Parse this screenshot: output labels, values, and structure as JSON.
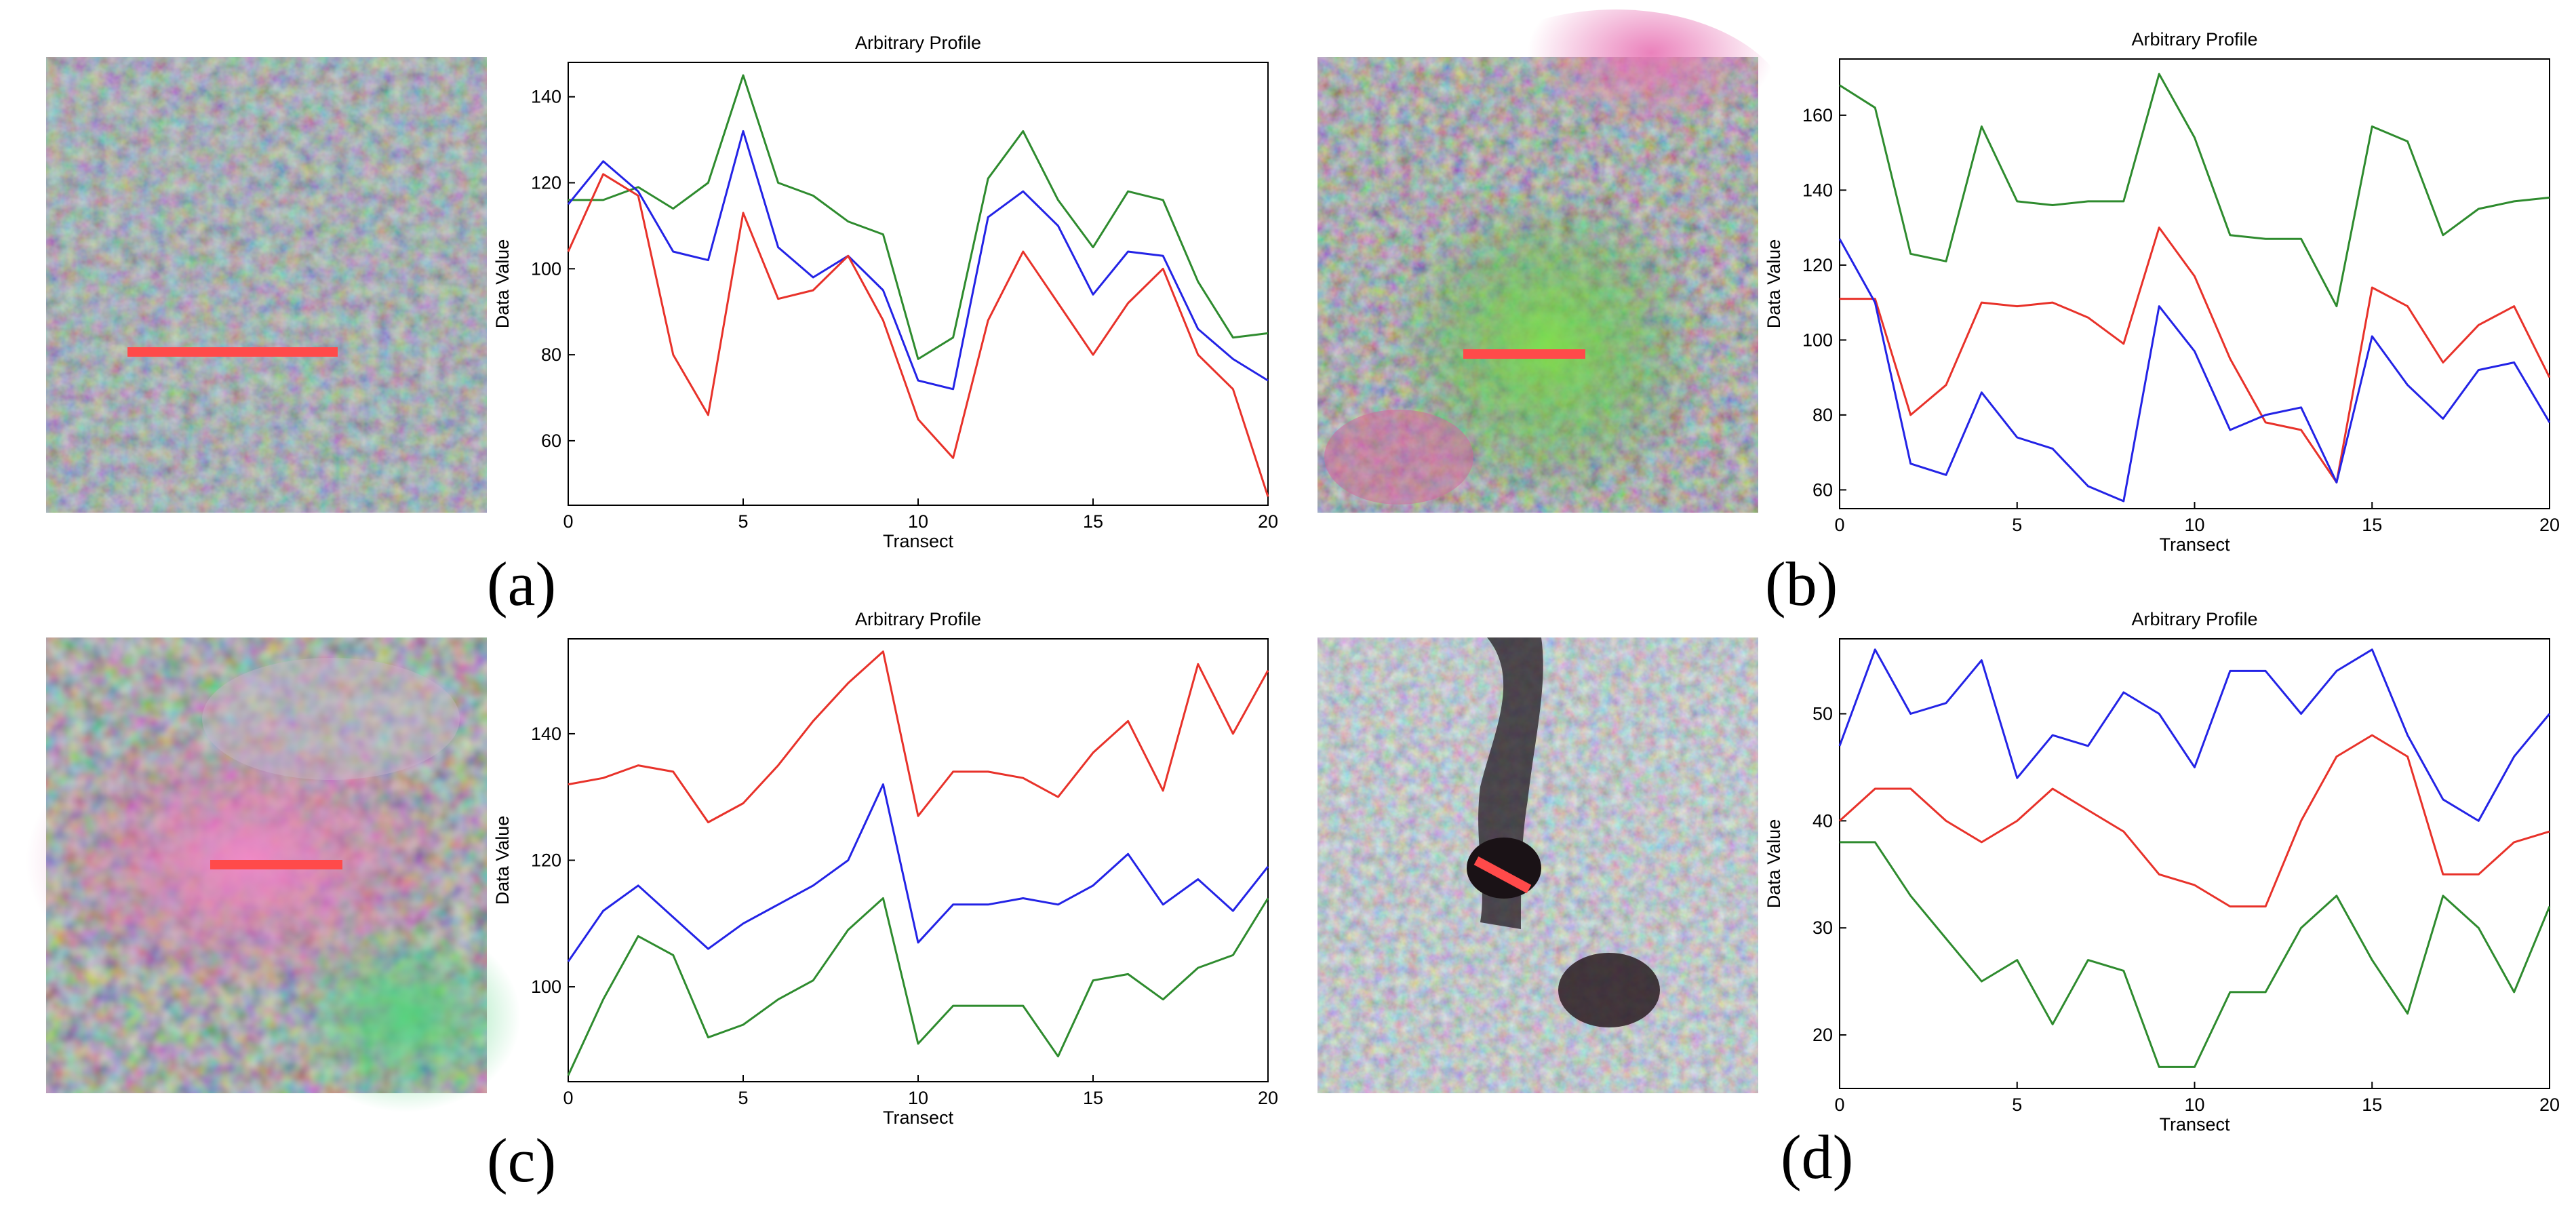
{
  "colors": {
    "red_series": "#e8322a",
    "blue_series": "#2323e6",
    "green_series": "#2e8b2e",
    "transect_line": "#ff4a4a"
  },
  "panels": [
    {
      "label": "(a)"
    },
    {
      "label": "(b)"
    },
    {
      "label": "(c)"
    },
    {
      "label": "(d)"
    }
  ],
  "chart_data": [
    {
      "type": "line",
      "title": "Arbitrary Profile",
      "xlabel": "Transect",
      "ylabel": "Data Value",
      "xlim": [
        0,
        20
      ],
      "ylim": [
        45,
        148
      ],
      "xticks": [
        0,
        5,
        10,
        15,
        20
      ],
      "yticks": [
        60,
        80,
        100,
        120,
        140
      ],
      "x": [
        0,
        1,
        2,
        3,
        4,
        5,
        6,
        7,
        8,
        9,
        10,
        11,
        12,
        13,
        14,
        15,
        16,
        17,
        18,
        19,
        20
      ],
      "series": [
        {
          "name": "green",
          "color": "#2e8b2e",
          "values": [
            116,
            116,
            119,
            114,
            120,
            145,
            120,
            117,
            111,
            108,
            79,
            84,
            121,
            132,
            116,
            105,
            118,
            116,
            97,
            84,
            85
          ]
        },
        {
          "name": "blue",
          "color": "#2323e6",
          "values": [
            115,
            125,
            118,
            104,
            102,
            132,
            105,
            98,
            103,
            95,
            74,
            72,
            112,
            118,
            110,
            94,
            104,
            103,
            86,
            79,
            74
          ]
        },
        {
          "name": "red",
          "color": "#e8322a",
          "values": [
            104,
            122,
            117,
            80,
            66,
            113,
            93,
            95,
            103,
            88,
            65,
            56,
            88,
            104,
            92,
            80,
            92,
            100,
            80,
            72,
            47
          ]
        }
      ]
    },
    {
      "type": "line",
      "title": "Arbitrary Profile",
      "xlabel": "Transect",
      "ylabel": "Data Value",
      "xlim": [
        0,
        20
      ],
      "ylim": [
        55,
        175
      ],
      "xticks": [
        0,
        5,
        10,
        15,
        20
      ],
      "yticks": [
        60,
        80,
        100,
        120,
        140,
        160
      ],
      "x": [
        0,
        1,
        2,
        3,
        4,
        5,
        6,
        7,
        8,
        9,
        10,
        11,
        12,
        13,
        14,
        15,
        16,
        17,
        18,
        19,
        20
      ],
      "series": [
        {
          "name": "green",
          "color": "#2e8b2e",
          "values": [
            168,
            162,
            123,
            121,
            157,
            137,
            136,
            137,
            137,
            171,
            154,
            128,
            127,
            127,
            109,
            157,
            153,
            128,
            135,
            137,
            138
          ]
        },
        {
          "name": "red",
          "color": "#e8322a",
          "values": [
            111,
            111,
            80,
            88,
            110,
            109,
            110,
            106,
            99,
            130,
            117,
            95,
            78,
            76,
            62,
            114,
            109,
            94,
            104,
            109,
            90
          ]
        },
        {
          "name": "blue",
          "color": "#2323e6",
          "values": [
            127,
            110,
            67,
            64,
            86,
            74,
            71,
            61,
            57,
            109,
            97,
            76,
            80,
            82,
            62,
            101,
            88,
            79,
            92,
            94,
            78
          ]
        }
      ]
    },
    {
      "type": "line",
      "title": "Arbitrary Profile",
      "xlabel": "Transect",
      "ylabel": "Data Value",
      "xlim": [
        0,
        20
      ],
      "ylim": [
        85,
        155
      ],
      "xticks": [
        0,
        5,
        10,
        15,
        20
      ],
      "yticks": [
        100,
        120,
        140
      ],
      "x": [
        0,
        1,
        2,
        3,
        4,
        5,
        6,
        7,
        8,
        9,
        10,
        11,
        12,
        13,
        14,
        15,
        16,
        17,
        18,
        19,
        20
      ],
      "series": [
        {
          "name": "red",
          "color": "#e8322a",
          "values": [
            132,
            133,
            135,
            134,
            126,
            129,
            135,
            142,
            148,
            153,
            127,
            134,
            134,
            133,
            130,
            137,
            142,
            131,
            151,
            140,
            150
          ]
        },
        {
          "name": "blue",
          "color": "#2323e6",
          "values": [
            104,
            112,
            116,
            111,
            106,
            110,
            113,
            116,
            120,
            132,
            107,
            113,
            113,
            114,
            113,
            116,
            121,
            113,
            117,
            112,
            119
          ]
        },
        {
          "name": "green",
          "color": "#2e8b2e",
          "values": [
            86,
            98,
            108,
            105,
            92,
            94,
            98,
            101,
            109,
            114,
            91,
            97,
            97,
            97,
            89,
            101,
            102,
            98,
            103,
            105,
            114
          ]
        }
      ]
    },
    {
      "type": "line",
      "title": "Arbitrary Profile",
      "xlabel": "Transect",
      "ylabel": "Data Value",
      "xlim": [
        0,
        20
      ],
      "ylim": [
        15,
        57
      ],
      "xticks": [
        0,
        5,
        10,
        15,
        20
      ],
      "yticks": [
        20,
        30,
        40,
        50
      ],
      "x": [
        0,
        1,
        2,
        3,
        4,
        5,
        6,
        7,
        8,
        9,
        10,
        11,
        12,
        13,
        14,
        15,
        16,
        17,
        18,
        19,
        20
      ],
      "series": [
        {
          "name": "blue",
          "color": "#2323e6",
          "values": [
            47,
            56,
            50,
            51,
            55,
            44,
            48,
            47,
            52,
            50,
            45,
            54,
            54,
            50,
            54,
            56,
            48,
            42,
            40,
            46,
            50
          ]
        },
        {
          "name": "red",
          "color": "#e8322a",
          "values": [
            40,
            43,
            43,
            40,
            38,
            40,
            43,
            41,
            39,
            35,
            34,
            32,
            32,
            40,
            46,
            48,
            46,
            35,
            35,
            38,
            39
          ]
        },
        {
          "name": "green",
          "color": "#2e8b2e",
          "values": [
            38,
            38,
            33,
            29,
            25,
            27,
            21,
            27,
            26,
            17,
            17,
            24,
            24,
            30,
            33,
            27,
            22,
            33,
            30,
            24,
            32
          ]
        }
      ]
    }
  ]
}
